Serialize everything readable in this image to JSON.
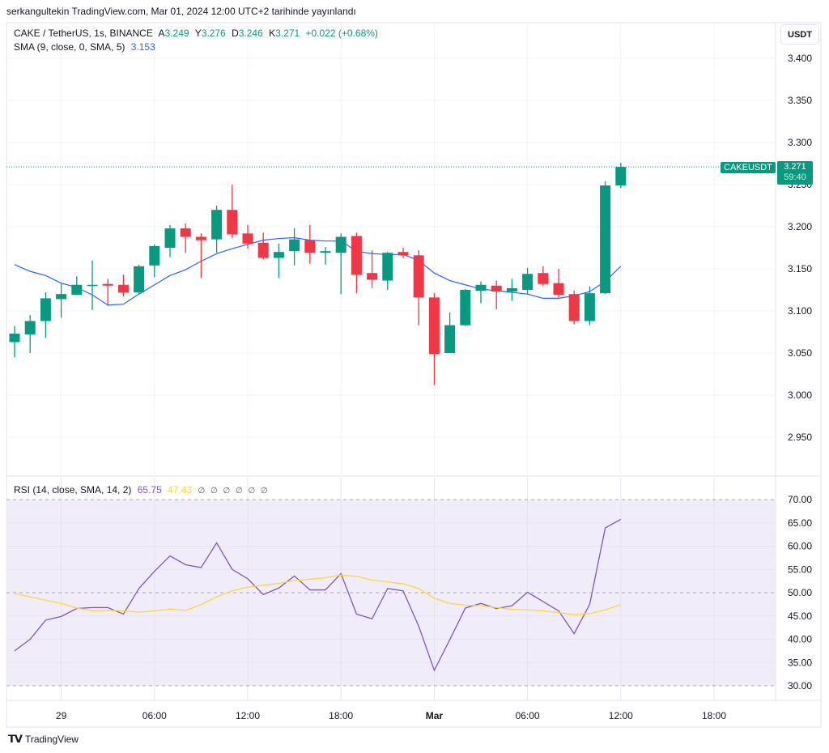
{
  "published": "serkangultekin TradingView.com, Mar 01, 2024 12:00 UTC+2 tarihinde yayınlandı",
  "legend": {
    "symbol": "CAKE / TetherUS, 1s, BINANCE",
    "open_label": "A",
    "open": "3.249",
    "high_label": "Y",
    "high": "3.276",
    "low_label": "D",
    "low": "3.246",
    "close_label": "K",
    "close": "3.271",
    "change": "+0.022 (+0.68%)",
    "sma_label": "SMA (9, close, 0, SMA, 5)",
    "sma_value": "3.153"
  },
  "rsi_legend": {
    "label": "RSI (14, close, SMA, 14, 2)",
    "rsi_value": "65.75",
    "rsi_sma_value": "47.43",
    "na_values": "∅ ∅ ∅ ∅ ∅ ∅"
  },
  "unit_button": "USDT",
  "last_price_badge": {
    "name": "CAKEUSDT",
    "price": "3.271",
    "countdown": "59:40"
  },
  "footer": {
    "logo_text": "TV",
    "brand": "TradingView"
  },
  "colors": {
    "up": "#089981",
    "down": "#f23645",
    "sma": "#2962ff",
    "rsi": "#7e57c2",
    "rsi_sma": "#fdd835",
    "rsi_band": "#f0ecf9"
  },
  "chart_data": [
    {
      "type": "candlestick",
      "title": "CAKE / TetherUS, 1h, BINANCE",
      "ylim": [
        2.91,
        3.43
      ],
      "yticks": [
        "3.400",
        "3.350",
        "3.300",
        "3.250",
        "3.200",
        "3.150",
        "3.100",
        "3.050",
        "3.000",
        "2.950"
      ],
      "xticks": [
        {
          "label": "29",
          "index": 3,
          "bold": false
        },
        {
          "label": "06:00",
          "index": 9,
          "bold": false
        },
        {
          "label": "12:00",
          "index": 15,
          "bold": false
        },
        {
          "label": "18:00",
          "index": 21,
          "bold": false
        },
        {
          "label": "Mar",
          "index": 27,
          "bold": true
        },
        {
          "label": "06:00",
          "index": 33,
          "bold": false
        },
        {
          "label": "12:00",
          "index": 39,
          "bold": false
        },
        {
          "label": "18:00",
          "index": 45,
          "bold": false
        }
      ],
      "ohlc": [
        [
          3.063,
          3.082,
          3.045,
          3.073
        ],
        [
          3.072,
          3.095,
          3.05,
          3.088
        ],
        [
          3.088,
          3.122,
          3.068,
          3.115
        ],
        [
          3.114,
          3.132,
          3.092,
          3.12
        ],
        [
          3.119,
          3.141,
          3.119,
          3.131
        ],
        [
          3.13,
          3.16,
          3.101,
          3.131
        ],
        [
          3.132,
          3.138,
          3.106,
          3.13
        ],
        [
          3.131,
          3.143,
          3.117,
          3.122
        ],
        [
          3.122,
          3.155,
          3.12,
          3.153
        ],
        [
          3.154,
          3.179,
          3.14,
          3.177
        ],
        [
          3.175,
          3.202,
          3.164,
          3.198
        ],
        [
          3.198,
          3.204,
          3.169,
          3.188
        ],
        [
          3.188,
          3.192,
          3.139,
          3.184
        ],
        [
          3.185,
          3.225,
          3.169,
          3.22
        ],
        [
          3.22,
          3.25,
          3.187,
          3.191
        ],
        [
          3.192,
          3.202,
          3.174,
          3.18
        ],
        [
          3.181,
          3.193,
          3.161,
          3.163
        ],
        [
          3.163,
          3.18,
          3.139,
          3.17
        ],
        [
          3.171,
          3.198,
          3.154,
          3.185
        ],
        [
          3.184,
          3.202,
          3.156,
          3.169
        ],
        [
          3.169,
          3.176,
          3.155,
          3.171
        ],
        [
          3.169,
          3.192,
          3.12,
          3.188
        ],
        [
          3.189,
          3.193,
          3.121,
          3.143
        ],
        [
          3.145,
          3.172,
          3.127,
          3.137
        ],
        [
          3.136,
          3.17,
          3.125,
          3.169
        ],
        [
          3.17,
          3.175,
          3.163,
          3.166
        ],
        [
          3.166,
          3.172,
          3.083,
          3.116
        ],
        [
          3.116,
          3.121,
          3.012,
          3.049
        ],
        [
          3.05,
          3.098,
          3.05,
          3.083
        ],
        [
          3.083,
          3.126,
          3.082,
          3.125
        ],
        [
          3.124,
          3.135,
          3.109,
          3.131
        ],
        [
          3.13,
          3.136,
          3.102,
          3.123
        ],
        [
          3.123,
          3.138,
          3.112,
          3.127
        ],
        [
          3.125,
          3.151,
          3.12,
          3.144
        ],
        [
          3.145,
          3.153,
          3.13,
          3.132
        ],
        [
          3.133,
          3.15,
          3.116,
          3.119
        ],
        [
          3.12,
          3.124,
          3.084,
          3.088
        ],
        [
          3.088,
          3.129,
          3.083,
          3.121
        ],
        [
          3.121,
          3.254,
          3.12,
          3.249
        ],
        [
          3.249,
          3.276,
          3.246,
          3.271
        ]
      ],
      "sma": [
        3.155,
        3.147,
        3.142,
        3.133,
        3.128,
        3.119,
        3.107,
        3.108,
        3.12,
        3.131,
        3.142,
        3.149,
        3.159,
        3.168,
        3.174,
        3.179,
        3.184,
        3.186,
        3.187,
        3.184,
        3.183,
        3.183,
        3.171,
        3.168,
        3.167,
        3.167,
        3.16,
        3.145,
        3.136,
        3.131,
        3.126,
        3.124,
        3.122,
        3.12,
        3.115,
        3.115,
        3.118,
        3.123,
        3.135,
        3.153
      ],
      "last_price": 3.271
    },
    {
      "type": "line",
      "title": "RSI (14, close, SMA, 14, 2)",
      "ylim": [
        30,
        70
      ],
      "yticks": [
        "70.00",
        "65.00",
        "60.00",
        "55.00",
        "50.00",
        "45.00",
        "40.00",
        "35.00",
        "30.00"
      ],
      "band": [
        30,
        70
      ],
      "series": [
        {
          "name": "RSI",
          "values": [
            37.5,
            40.0,
            44.1,
            44.9,
            46.6,
            46.8,
            46.8,
            45.4,
            50.9,
            54.6,
            57.9,
            56.0,
            55.4,
            60.7,
            55.0,
            53.0,
            49.6,
            51.0,
            53.6,
            50.6,
            50.6,
            54.1,
            45.4,
            44.4,
            50.9,
            50.4,
            42.8,
            33.3,
            39.9,
            46.7,
            47.7,
            46.6,
            47.2,
            50.1,
            48.1,
            46.1,
            41.2,
            47.5,
            63.9,
            65.75
          ]
        },
        {
          "name": "RSI-based MA",
          "values": [
            49.8,
            49.1,
            48.4,
            47.7,
            46.7,
            46.1,
            46.2,
            46.1,
            45.8,
            46.1,
            46.5,
            46.2,
            47.4,
            49.1,
            50.4,
            51.2,
            51.6,
            52.0,
            52.6,
            52.9,
            53.2,
            53.8,
            53.5,
            52.7,
            52.3,
            51.9,
            50.9,
            48.8,
            47.7,
            47.3,
            47.2,
            46.8,
            46.4,
            46.3,
            46.1,
            45.7,
            45.3,
            45.5,
            46.3,
            47.43
          ]
        }
      ]
    }
  ]
}
